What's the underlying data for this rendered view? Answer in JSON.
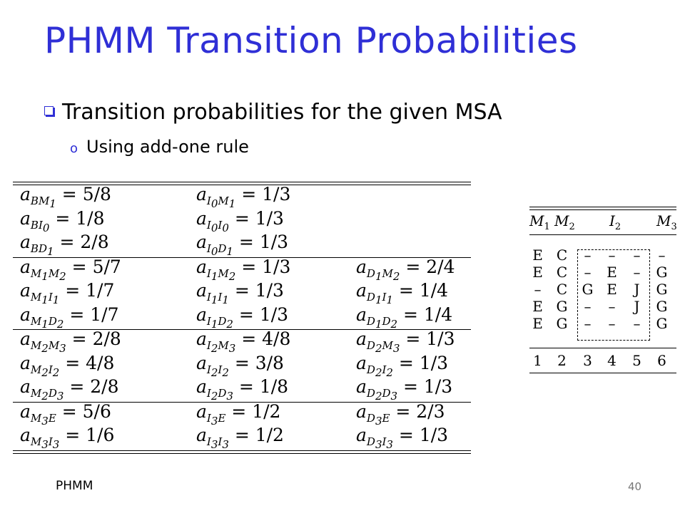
{
  "title": "PHMM Transition Probabilities",
  "bullet1": "Transition probabilities for the given MSA",
  "bullet2_marker": "o",
  "bullet2": "Using add-one rule",
  "transitions": {
    "groups": [
      {
        "rows": [
          [
            {
              "sym": "a",
              "from": "B",
              "to": "M",
              "to_sub": "1",
              "val": "5/8"
            },
            {
              "sym": "a",
              "from": "I",
              "from_sub": "0",
              "to": "M",
              "to_sub": "1",
              "val": "1/3"
            },
            null
          ],
          [
            {
              "sym": "a",
              "from": "B",
              "to": "I",
              "to_sub": "0",
              "val": "1/8"
            },
            {
              "sym": "a",
              "from": "I",
              "from_sub": "0",
              "to": "I",
              "to_sub": "0",
              "val": "1/3"
            },
            null
          ],
          [
            {
              "sym": "a",
              "from": "B",
              "to": "D",
              "to_sub": "1",
              "val": "2/8"
            },
            {
              "sym": "a",
              "from": "I",
              "from_sub": "0",
              "to": "D",
              "to_sub": "1",
              "val": "1/3"
            },
            null
          ]
        ]
      },
      {
        "rows": [
          [
            {
              "sym": "a",
              "from": "M",
              "from_sub": "1",
              "to": "M",
              "to_sub": "2",
              "val": "5/7"
            },
            {
              "sym": "a",
              "from": "I",
              "from_sub": "1",
              "to": "M",
              "to_sub": "2",
              "val": "1/3"
            },
            {
              "sym": "a",
              "from": "D",
              "from_sub": "1",
              "to": "M",
              "to_sub": "2",
              "val": "2/4"
            }
          ],
          [
            {
              "sym": "a",
              "from": "M",
              "from_sub": "1",
              "to": "I",
              "to_sub": "1",
              "val": "1/7"
            },
            {
              "sym": "a",
              "from": "I",
              "from_sub": "1",
              "to": "I",
              "to_sub": "1",
              "val": "1/3"
            },
            {
              "sym": "a",
              "from": "D",
              "from_sub": "1",
              "to": "I",
              "to_sub": "1",
              "val": "1/4"
            }
          ],
          [
            {
              "sym": "a",
              "from": "M",
              "from_sub": "1",
              "to": "D",
              "to_sub": "2",
              "val": "1/7"
            },
            {
              "sym": "a",
              "from": "I",
              "from_sub": "1",
              "to": "D",
              "to_sub": "2",
              "val": "1/3"
            },
            {
              "sym": "a",
              "from": "D",
              "from_sub": "1",
              "to": "D",
              "to_sub": "2",
              "val": "1/4"
            }
          ]
        ]
      },
      {
        "rows": [
          [
            {
              "sym": "a",
              "from": "M",
              "from_sub": "2",
              "to": "M",
              "to_sub": "3",
              "val": "2/8"
            },
            {
              "sym": "a",
              "from": "I",
              "from_sub": "2",
              "to": "M",
              "to_sub": "3",
              "val": "4/8"
            },
            {
              "sym": "a",
              "from": "D",
              "from_sub": "2",
              "to": "M",
              "to_sub": "3",
              "val": "1/3"
            }
          ],
          [
            {
              "sym": "a",
              "from": "M",
              "from_sub": "2",
              "to": "I",
              "to_sub": "2",
              "val": "4/8"
            },
            {
              "sym": "a",
              "from": "I",
              "from_sub": "2",
              "to": "I",
              "to_sub": "2",
              "val": "3/8"
            },
            {
              "sym": "a",
              "from": "D",
              "from_sub": "2",
              "to": "I",
              "to_sub": "2",
              "val": "1/3"
            }
          ],
          [
            {
              "sym": "a",
              "from": "M",
              "from_sub": "2",
              "to": "D",
              "to_sub": "3",
              "val": "2/8"
            },
            {
              "sym": "a",
              "from": "I",
              "from_sub": "2",
              "to": "D",
              "to_sub": "3",
              "val": "1/8"
            },
            {
              "sym": "a",
              "from": "D",
              "from_sub": "2",
              "to": "D",
              "to_sub": "3",
              "val": "1/3"
            }
          ]
        ]
      },
      {
        "rows": [
          [
            {
              "sym": "a",
              "from": "M",
              "from_sub": "3",
              "to": "E",
              "val": "5/6"
            },
            {
              "sym": "a",
              "from": "I",
              "from_sub": "3",
              "to": "E",
              "val": "1/2"
            },
            {
              "sym": "a",
              "from": "D",
              "from_sub": "3",
              "to": "E",
              "val": "2/3"
            }
          ],
          [
            {
              "sym": "a",
              "from": "M",
              "from_sub": "3",
              "to": "I",
              "to_sub": "3",
              "val": "1/6"
            },
            {
              "sym": "a",
              "from": "I",
              "from_sub": "3",
              "to": "I",
              "to_sub": "3",
              "val": "1/2"
            },
            {
              "sym": "a",
              "from": "D",
              "from_sub": "3",
              "to": "I",
              "to_sub": "3",
              "val": "1/3"
            }
          ]
        ]
      }
    ]
  },
  "msa": {
    "headers": [
      {
        "label": "M",
        "sub": "1"
      },
      {
        "label": "M",
        "sub": "2"
      },
      {
        "label": "I",
        "sub": "2"
      },
      {
        "label": "M",
        "sub": "3"
      }
    ],
    "rows": [
      [
        "E",
        "C",
        "–",
        "–",
        "–",
        "–"
      ],
      [
        "E",
        "C",
        "–",
        "E",
        "–",
        "G"
      ],
      [
        "–",
        "C",
        "G",
        "E",
        "J",
        "G"
      ],
      [
        "E",
        "G",
        "–",
        "–",
        "J",
        "G"
      ],
      [
        "E",
        "G",
        "–",
        "–",
        "–",
        "G"
      ]
    ],
    "columns": [
      "1",
      "2",
      "3",
      "4",
      "5",
      "6"
    ]
  },
  "footer_left": "PHMM",
  "page_number": "40"
}
